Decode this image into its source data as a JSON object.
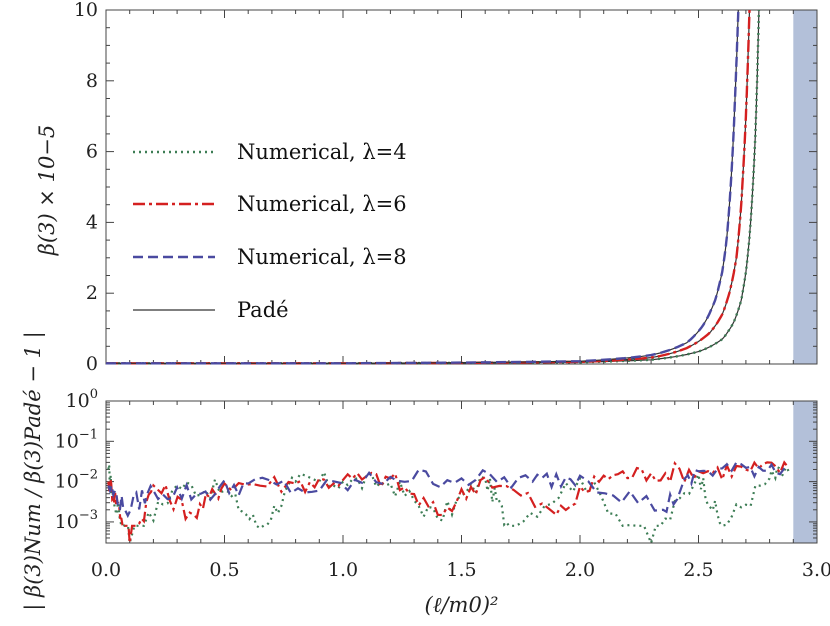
{
  "chart_data": [
    {
      "type": "line",
      "panel": "top",
      "ylabel": "β(3) × 10−5",
      "ylim": [
        0,
        10
      ],
      "xlim": [
        0,
        3.0
      ],
      "yticks": [
        "0",
        "2",
        "4",
        "6",
        "8",
        "10"
      ],
      "x_divergence_threshold": 2.9,
      "legend": {
        "placement": "left",
        "entries": [
          "Numerical, λ=4",
          "Numerical, λ=6",
          "Numerical, λ=8",
          "Padé"
        ]
      },
      "series": [
        {
          "name": "Numerical, λ=4",
          "style": "dotted",
          "color": "#3d7d55",
          "points": [
            [
              0,
              0.02
            ],
            [
              0.5,
              0.02
            ],
            [
              1.0,
              0.02
            ],
            [
              1.5,
              0.03
            ],
            [
              2.0,
              0.05
            ],
            [
              2.3,
              0.12
            ],
            [
              2.5,
              0.35
            ],
            [
              2.6,
              0.7
            ],
            [
              2.65,
              1.2
            ],
            [
              2.68,
              1.8
            ],
            [
              2.7,
              2.6
            ],
            [
              2.72,
              4.0
            ],
            [
              2.74,
              6.5
            ],
            [
              2.755,
              10
            ]
          ]
        },
        {
          "name": "Numerical, λ=6",
          "style": "dashdot",
          "color": "#d42020",
          "points": [
            [
              0,
              0.02
            ],
            [
              0.5,
              0.02
            ],
            [
              1.0,
              0.02
            ],
            [
              1.5,
              0.03
            ],
            [
              2.0,
              0.06
            ],
            [
              2.3,
              0.18
            ],
            [
              2.45,
              0.45
            ],
            [
              2.55,
              0.9
            ],
            [
              2.6,
              1.4
            ],
            [
              2.63,
              2.0
            ],
            [
              2.66,
              3.0
            ],
            [
              2.68,
              4.5
            ],
            [
              2.7,
              7.0
            ],
            [
              2.715,
              10
            ]
          ]
        },
        {
          "name": "Numerical, λ=8",
          "style": "dashed",
          "color": "#4a4aa0",
          "points": [
            [
              0,
              0.02
            ],
            [
              0.5,
              0.02
            ],
            [
              1.0,
              0.02
            ],
            [
              1.5,
              0.04
            ],
            [
              2.0,
              0.08
            ],
            [
              2.3,
              0.25
            ],
            [
              2.45,
              0.6
            ],
            [
              2.52,
              1.1
            ],
            [
              2.57,
              1.8
            ],
            [
              2.6,
              2.6
            ],
            [
              2.62,
              3.6
            ],
            [
              2.64,
              5.5
            ],
            [
              2.66,
              8.5
            ],
            [
              2.668,
              10
            ]
          ]
        },
        {
          "name": "Padé",
          "style": "solid",
          "color": "#333333",
          "members": [
            "lambda4",
            "lambda6",
            "lambda8"
          ]
        }
      ]
    },
    {
      "type": "line",
      "panel": "bottom",
      "ylabel": "| β(3)Num / β(3)Padé − 1 |",
      "yscale": "log",
      "ylim": [
        0.0003,
        1
      ],
      "xlim": [
        0,
        3.0
      ],
      "yticks": [
        "10^0",
        "10^−1",
        "10^−2",
        "10^−3"
      ],
      "xlabel": "(ℓ/m0)²",
      "xticks": [
        "0.0",
        "0.5",
        "1.0",
        "1.5",
        "2.0",
        "2.5",
        "3.0"
      ],
      "x_divergence_threshold": 2.9,
      "series": [
        {
          "name": "Numerical, λ=4",
          "style": "dotted",
          "color": "#3d7d55",
          "points": [
            [
              0.01,
              0.02
            ],
            [
              0.03,
              0.004
            ],
            [
              0.1,
              0.0003
            ],
            [
              0.3,
              0.008
            ],
            [
              0.5,
              0.006
            ],
            [
              0.65,
              0.0007
            ],
            [
              0.8,
              0.01
            ],
            [
              1.0,
              0.01
            ],
            [
              1.2,
              0.009
            ],
            [
              1.4,
              0.0012
            ],
            [
              1.6,
              0.012
            ],
            [
              1.7,
              0.0008
            ],
            [
              2.0,
              0.012
            ],
            [
              2.3,
              0.0003
            ],
            [
              2.5,
              0.015
            ],
            [
              2.6,
              0.0008
            ],
            [
              2.8,
              0.012
            ],
            [
              2.88,
              0.018
            ]
          ]
        },
        {
          "name": "Numerical, λ=6",
          "style": "dashdot",
          "color": "#d42020",
          "points": [
            [
              0.01,
              0.01
            ],
            [
              0.05,
              0.003
            ],
            [
              0.1,
              0.0002
            ],
            [
              0.2,
              0.008
            ],
            [
              0.37,
              0.0015
            ],
            [
              0.5,
              0.009
            ],
            [
              0.8,
              0.009
            ],
            [
              1.0,
              0.011
            ],
            [
              1.2,
              0.012
            ],
            [
              1.4,
              0.0015
            ],
            [
              1.6,
              0.013
            ],
            [
              1.9,
              0.0015
            ],
            [
              2.1,
              0.014
            ],
            [
              2.3,
              0.016
            ],
            [
              2.5,
              0.018
            ],
            [
              2.7,
              0.02
            ],
            [
              2.88,
              0.022
            ]
          ]
        },
        {
          "name": "Numerical, λ=8",
          "style": "dashed",
          "color": "#4a4aa0",
          "points": [
            [
              0.01,
              0.008
            ],
            [
              0.08,
              0.002
            ],
            [
              0.2,
              0.006
            ],
            [
              0.4,
              0.005
            ],
            [
              0.6,
              0.009
            ],
            [
              0.9,
              0.006
            ],
            [
              1.2,
              0.013
            ],
            [
              1.5,
              0.012
            ],
            [
              1.8,
              0.01
            ],
            [
              2.0,
              0.014
            ],
            [
              2.35,
              0.002
            ],
            [
              2.5,
              0.018
            ],
            [
              2.7,
              0.022
            ],
            [
              2.88,
              0.025
            ]
          ]
        }
      ]
    }
  ]
}
